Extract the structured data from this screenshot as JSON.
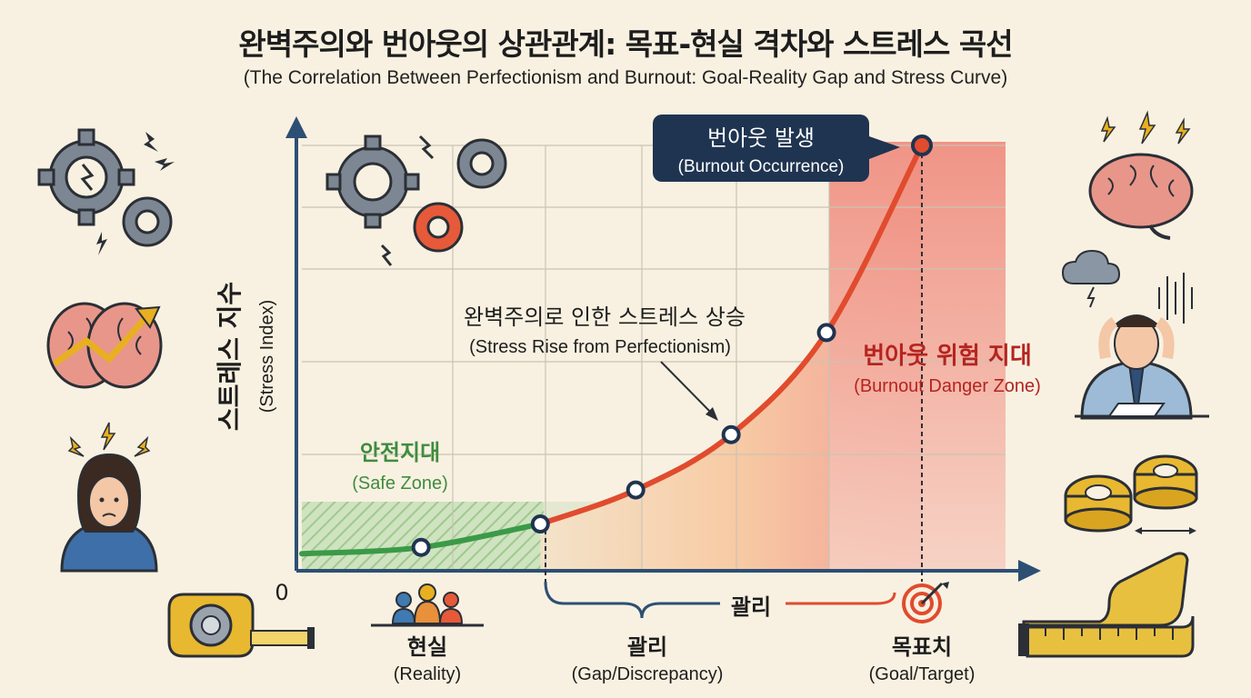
{
  "title": "완벽주의와 번아웃의 상관관계: 목표-현실 격차와 스트레스 곡선",
  "subtitle": "(The Correlation Between Perfectionism and Burnout: Goal-Reality Gap and Stress Curve)",
  "colors": {
    "axis": "#2d4f74",
    "curve_safe": "#3b9a48",
    "curve_risk": "#e14b2e",
    "safe_text": "#3f8c3f",
    "danger_text": "#b52420",
    "callout_bg": "#1f3450"
  },
  "chart_data": {
    "type": "line",
    "title": "Stress Curve",
    "ylabel": "스트레스 지수",
    "ylabel_en": "(Stress Index)",
    "origin_label": "0",
    "xlim": [
      0,
      10
    ],
    "ylim": [
      0,
      10
    ],
    "curve_points": [
      {
        "x": 0,
        "y": 0.4
      },
      {
        "x": 1.25,
        "y": 0.55
      },
      {
        "x": 2.5,
        "y": 1.1
      },
      {
        "x": 3.5,
        "y": 1.9
      },
      {
        "x": 4.5,
        "y": 3.2
      },
      {
        "x": 5.5,
        "y": 5.6
      },
      {
        "x": 6.5,
        "y": 10.0
      }
    ],
    "markers": [
      {
        "x": 1.25,
        "y": 0.55
      },
      {
        "x": 2.5,
        "y": 1.1
      },
      {
        "x": 3.5,
        "y": 1.9
      },
      {
        "x": 4.5,
        "y": 3.2
      },
      {
        "x": 5.5,
        "y": 5.6
      },
      {
        "x": 6.5,
        "y": 10.0
      }
    ],
    "safe_zone": {
      "x_end": 2.5,
      "y_top": 1.6,
      "label": "안전지대",
      "label_en": "(Safe Zone)"
    },
    "danger_zone": {
      "label": "번아웃 위험 지대",
      "label_en": "(Burnout Danger Zone)"
    },
    "peak_callout": {
      "label": "번아웃 발생",
      "label_en": "(Burnout Occurrence)"
    },
    "rise_annotation": {
      "label": "완벽주의로 인한 스트레스 상승",
      "label_en": "(Stress Rise from Perfectionism)"
    },
    "x_markers": [
      {
        "x": 1.25,
        "label": "현실",
        "label_en": "(Reality)"
      },
      {
        "x": 6.5,
        "label": "목표치",
        "label_en": "(Goal/Target)"
      }
    ],
    "gap": {
      "x_start": 2.5,
      "x_end": 6.5,
      "label": "괄리",
      "label_en": "(Gap/Discrepancy)",
      "brace_label": "괄리"
    }
  },
  "icons": [
    "gears-icon",
    "lightning-icon",
    "brain-chart-icon",
    "stressed-woman-icon",
    "tape-measure-icon",
    "people-icon",
    "target-icon",
    "brain-icon",
    "storm-cloud-icon",
    "stressed-man-icon",
    "tape-rolls-icon",
    "ruler-tape-icon"
  ]
}
